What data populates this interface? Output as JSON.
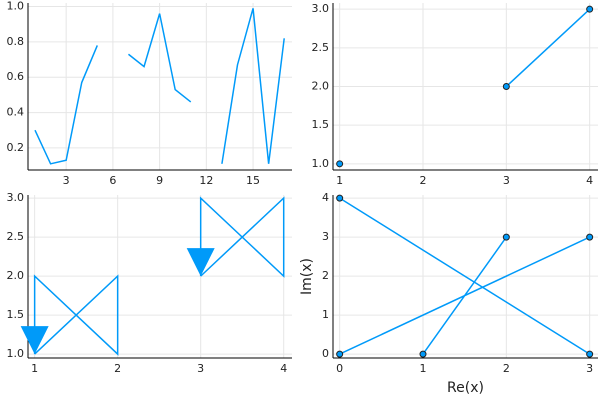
{
  "chart_data": [
    {
      "type": "line",
      "grid": true,
      "series": [
        {
          "color": "#009af9",
          "x": [
            1,
            2,
            3,
            4,
            5,
            6,
            7,
            8,
            9,
            10,
            11,
            12,
            13,
            14,
            15,
            16,
            17
          ],
          "values": [
            0.3,
            0.11,
            0.13,
            0.57,
            0.78,
            null,
            0.73,
            0.66,
            0.96,
            0.53,
            0.46,
            null,
            0.11,
            0.67,
            0.99,
            0.11,
            0.82
          ]
        }
      ],
      "xlim": [
        0.55,
        17.5
      ],
      "xticks": [
        3,
        6,
        9,
        12,
        15
      ],
      "ylim": [
        0.075,
        1.02
      ],
      "yticks": [
        0.2,
        0.4,
        0.6,
        0.8,
        {
          "value": 1,
          "label": "1.0"
        }
      ]
    },
    {
      "type": "line",
      "grid": true,
      "markers": true,
      "series": [
        {
          "color": "#009af9",
          "x": [
            1,
            2,
            3,
            4
          ],
          "values": [
            1,
            null,
            2,
            3
          ]
        }
      ],
      "xlim": [
        0.92,
        4.1
      ],
      "xticks": [
        1,
        2,
        3,
        4
      ],
      "ylim": [
        0.92,
        3.08
      ],
      "yticks": [
        {
          "value": 1,
          "label": "1.0"
        },
        1.5,
        {
          "value": 2,
          "label": "2.0"
        },
        2.5,
        {
          "value": 3,
          "label": "3.0"
        }
      ]
    },
    {
      "type": "line",
      "grid": true,
      "arrow": true,
      "series": [
        {
          "color": "#009af9",
          "x": [
            1,
            2,
            2,
            1,
            1
          ],
          "values": [
            1,
            2,
            1,
            2,
            1
          ]
        },
        {
          "color": "#009af9",
          "x": [
            3,
            4,
            4,
            3,
            3
          ],
          "values": [
            2,
            3,
            2,
            3,
            2
          ]
        }
      ],
      "xlim": [
        0.92,
        4.1
      ],
      "xticks": [
        1,
        2,
        3,
        4
      ],
      "ylim": [
        0.95,
        3.04
      ],
      "yticks": [
        {
          "value": 1,
          "label": "1.0"
        },
        1.5,
        {
          "value": 2,
          "label": "2.0"
        },
        2.5,
        {
          "value": 3,
          "label": "3.0"
        }
      ]
    },
    {
      "type": "line",
      "grid": true,
      "markers": true,
      "xlabel": "Re(x)",
      "ylabel": "Im(x)",
      "series": [
        {
          "color": "#009af9",
          "x": [
            0,
            3,
            null,
            0,
            3,
            null,
            1,
            2
          ],
          "values": [
            4,
            0,
            null,
            0,
            3,
            null,
            0,
            3
          ]
        }
      ],
      "xlim": [
        -0.08,
        3.1
      ],
      "xticks": [
        0,
        1,
        2,
        3
      ],
      "ylim": [
        -0.1,
        4.08
      ],
      "yticks": [
        0,
        1,
        2,
        3,
        4
      ]
    }
  ]
}
